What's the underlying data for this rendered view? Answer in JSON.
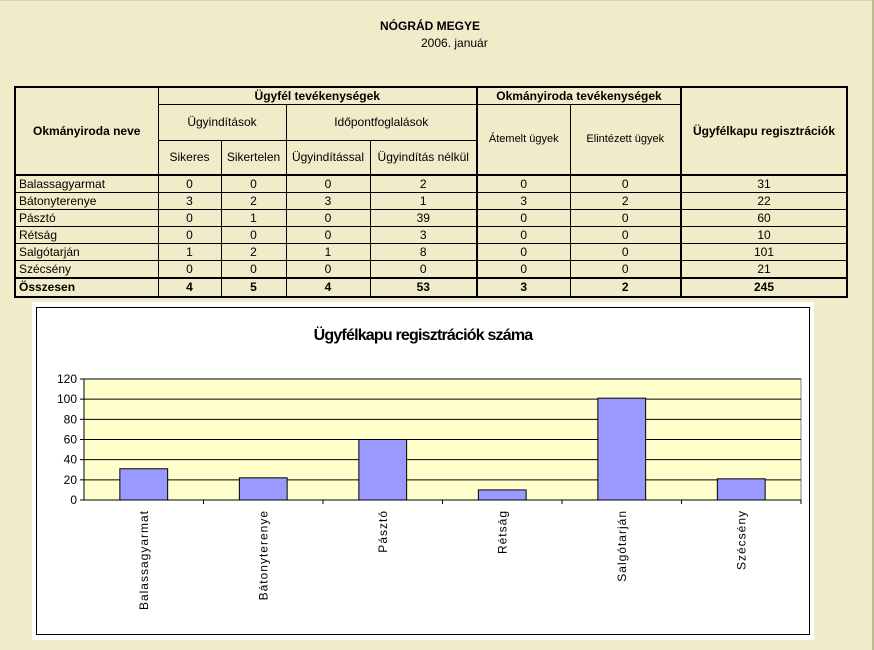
{
  "report": {
    "title": "NÓGRÁD MEGYE",
    "date": "2006. január"
  },
  "table": {
    "headers": {
      "office_name": "Okmányiroda neve",
      "client_activities": "Ügyfél tevékenységek",
      "office_activities": "Okmányiroda tevékenységek",
      "gateway_registrations": "Ügyfélkapu regisztrációk",
      "initiations": "Ügyindítások",
      "appointments": "Időpontfoglalások",
      "successful": "Sikeres",
      "unsuccessful": "Sikertelen",
      "with_initiation": "Ügyindítással",
      "without_initiation": "Ügyindítás nélkül",
      "transferred": "Átemelt ügyek",
      "completed": "Elintézett ügyek"
    },
    "rows": [
      {
        "name": "Balassagyarmat",
        "v": [
          "0",
          "0",
          "0",
          "2",
          "0",
          "0",
          "31"
        ]
      },
      {
        "name": "Bátonyterenye",
        "v": [
          "3",
          "2",
          "3",
          "1",
          "3",
          "2",
          "22"
        ]
      },
      {
        "name": "Pásztó",
        "v": [
          "0",
          "1",
          "0",
          "39",
          "0",
          "0",
          "60"
        ]
      },
      {
        "name": "Rétság",
        "v": [
          "0",
          "0",
          "0",
          "3",
          "0",
          "0",
          "10"
        ]
      },
      {
        "name": "Salgótarján",
        "v": [
          "1",
          "2",
          "1",
          "8",
          "0",
          "0",
          "101"
        ]
      },
      {
        "name": "Szécsény",
        "v": [
          "0",
          "0",
          "0",
          "0",
          "0",
          "0",
          "21"
        ]
      }
    ],
    "total": {
      "name": "Összesen",
      "v": [
        "4",
        "5",
        "4",
        "53",
        "3",
        "2",
        "245"
      ]
    }
  },
  "chart_data": {
    "type": "bar",
    "title": "Ügyfélkapu regisztrációk száma",
    "categories": [
      "Balassagyarmat",
      "Bátonyterenye",
      "Pásztó",
      "Rétság",
      "Salgótarján",
      "Szécsény"
    ],
    "values": [
      31,
      22,
      60,
      10,
      101,
      21
    ],
    "ylim": [
      0,
      120
    ],
    "yticks": [
      0,
      20,
      40,
      60,
      80,
      100,
      120
    ],
    "grid": true,
    "legend": "none",
    "colors": {
      "bar": "#9999ff",
      "plot_bg": "#ffffcc",
      "outline": "#000000"
    }
  }
}
